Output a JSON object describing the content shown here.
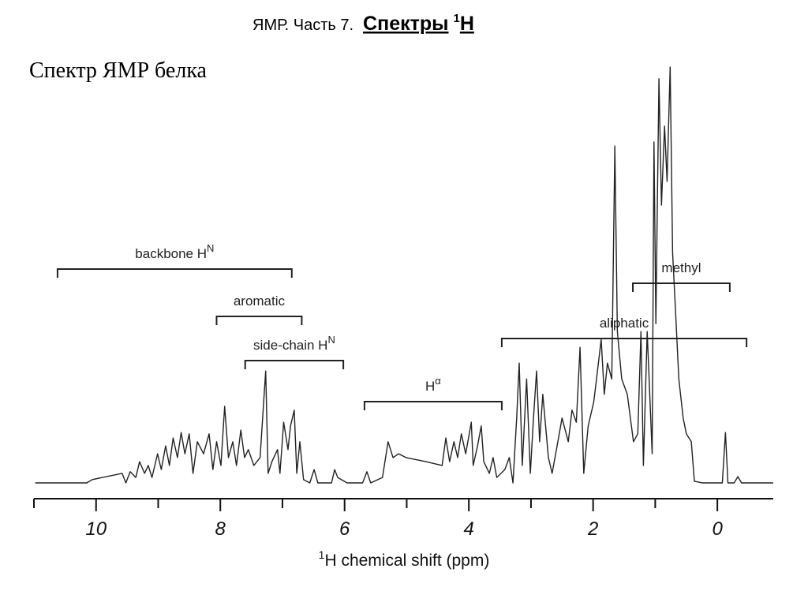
{
  "header": {
    "title": "ЯМР. Часть 7.",
    "title_bold": "Спектры",
    "title_sup": "1",
    "title_end": "H"
  },
  "subtitle": "Спектр ЯМР белка",
  "chart_data": {
    "type": "line",
    "x_label": {
      "sup": "1",
      "text": "H chemical shift (ppm)"
    },
    "color": "#222222",
    "xlim": [
      11,
      -0.9
    ],
    "xticks": [
      10,
      8,
      6,
      4,
      2,
      0
    ],
    "xminor_ticks": [
      11,
      9,
      7,
      5,
      3,
      1
    ],
    "ylim": [
      0,
      100
    ],
    "x": [
      10.98,
      10.15,
      10.06,
      9.58,
      9.52,
      9.45,
      9.36,
      9.3,
      9.22,
      9.16,
      9.1,
      9.01,
      8.95,
      8.88,
      8.82,
      8.76,
      8.69,
      8.63,
      8.57,
      8.5,
      8.44,
      8.37,
      8.27,
      8.18,
      8.12,
      8.06,
      7.99,
      7.93,
      7.87,
      7.8,
      7.74,
      7.67,
      7.61,
      7.55,
      7.46,
      7.36,
      7.27,
      7.23,
      7.17,
      7.08,
      7.04,
      6.98,
      6.91,
      6.87,
      6.81,
      6.77,
      6.72,
      6.66,
      6.56,
      6.49,
      6.43,
      6.21,
      6.16,
      6.11,
      5.96,
      5.71,
      5.64,
      5.58,
      5.39,
      5.3,
      5.22,
      5.13,
      5.01,
      4.69,
      4.43,
      4.37,
      4.31,
      4.24,
      4.18,
      4.12,
      4.05,
      3.96,
      3.93,
      3.86,
      3.8,
      3.76,
      3.67,
      3.61,
      3.55,
      3.42,
      3.35,
      3.29,
      3.23,
      3.19,
      3.14,
      3.07,
      3.01,
      2.96,
      2.91,
      2.86,
      2.81,
      2.72,
      2.66,
      2.59,
      2.5,
      2.4,
      2.34,
      2.27,
      2.21,
      2.15,
      2.08,
      1.99,
      1.96,
      1.87,
      1.82,
      1.77,
      1.7,
      1.65,
      1.61,
      1.54,
      1.45,
      1.35,
      1.28,
      1.23,
      1.19,
      1.13,
      1.05,
      1.02,
      0.99,
      0.97,
      0.94,
      0.9,
      0.85,
      0.81,
      0.76,
      0.72,
      0.67,
      0.62,
      0.55,
      0.5,
      0.42,
      0.37,
      0.24,
      -0.08,
      -0.13,
      -0.17,
      -0.27,
      -0.33,
      -0.39,
      -0.9
    ],
    "values": [
      0,
      0,
      0.8,
      2.3,
      0,
      2.7,
      1.3,
      5.1,
      2.3,
      4.2,
      1.3,
      7.0,
      3.2,
      8.9,
      4.2,
      10.8,
      6.1,
      12.1,
      7.0,
      11.8,
      2.3,
      9.9,
      7.0,
      11.8,
      3.2,
      9.9,
      4.2,
      18.4,
      6.1,
      9.9,
      4.2,
      12.7,
      6.1,
      8.0,
      4.2,
      6.1,
      26.9,
      2.3,
      5.1,
      8.0,
      2.3,
      14.6,
      8.0,
      13.7,
      17.5,
      2.3,
      9.9,
      0.8,
      0,
      3.2,
      0,
      0,
      3.2,
      1.3,
      0,
      0,
      2.7,
      0,
      1.3,
      9.9,
      6.1,
      7.0,
      6.1,
      5.1,
      4.2,
      10.8,
      5.1,
      9.9,
      6.1,
      11.8,
      7.0,
      14.6,
      4.2,
      8.9,
      13.7,
      5.1,
      2.3,
      6.1,
      1.3,
      3.2,
      6.1,
      0,
      15.6,
      28.8,
      4.2,
      25.0,
      2.3,
      15.6,
      26.9,
      9.9,
      21.3,
      6.1,
      2.3,
      8.0,
      15.6,
      9.9,
      17.5,
      14.6,
      32.6,
      2.3,
      13.7,
      19.4,
      23.1,
      34.5,
      21.3,
      28.8,
      25.0,
      81.0,
      36.4,
      25.0,
      21.3,
      9.9,
      11.8,
      36.4,
      4.2,
      36.4,
      7.0,
      82.0,
      38.3,
      63.0,
      97.2,
      66.8,
      85.8,
      72.5,
      100,
      55.4,
      40.2,
      25.0,
      15.6,
      11.8,
      9.9,
      0.4,
      0,
      0,
      12.1,
      0,
      0,
      1.5,
      0,
      0
    ],
    "annotations": [
      {
        "text": "backbone H",
        "sup": "N",
        "from": 10.62,
        "to": 6.85
      },
      {
        "text": "aromatic",
        "from": 8.06,
        "to": 6.69
      },
      {
        "text": "side-chain H",
        "sup": "N",
        "from": 7.6,
        "to": 6.02
      },
      {
        "text": "H",
        "sup": "α",
        "from": 5.68,
        "to": 3.47
      },
      {
        "text": "aliphatic",
        "from": 3.47,
        "to": -0.47
      },
      {
        "text": "methyl",
        "from": 1.36,
        "to": -0.2
      }
    ]
  }
}
